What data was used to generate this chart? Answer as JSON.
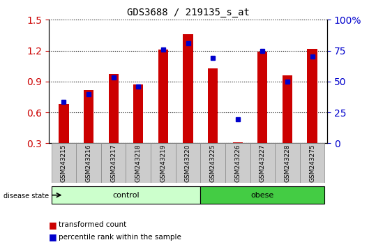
{
  "title": "GDS3688 / 219135_s_at",
  "samples": [
    "GSM243215",
    "GSM243216",
    "GSM243217",
    "GSM243218",
    "GSM243219",
    "GSM243220",
    "GSM243225",
    "GSM243226",
    "GSM243227",
    "GSM243228",
    "GSM243275"
  ],
  "red_values": [
    0.68,
    0.82,
    0.97,
    0.87,
    1.21,
    1.36,
    1.03,
    0.31,
    1.19,
    0.96,
    1.22
  ],
  "blue_values": [
    0.7,
    0.78,
    0.94,
    0.85,
    1.21,
    1.27,
    1.13,
    0.53,
    1.2,
    0.9,
    1.14
  ],
  "red_baseline": 0.3,
  "ylim_left": [
    0.3,
    1.5
  ],
  "ylim_right": [
    0.0,
    100.0
  ],
  "yticks_left": [
    0.3,
    0.6,
    0.9,
    1.2,
    1.5
  ],
  "yticks_right": [
    0,
    25,
    50,
    75,
    100
  ],
  "ytick_labels_right": [
    "0",
    "25",
    "50",
    "75",
    "100%"
  ],
  "control_samples": [
    "GSM243215",
    "GSM243216",
    "GSM243217",
    "GSM243218",
    "GSM243219",
    "GSM243220"
  ],
  "obese_samples": [
    "GSM243225",
    "GSM243226",
    "GSM243227",
    "GSM243228",
    "GSM243275"
  ],
  "control_label": "control",
  "obese_label": "obese",
  "disease_state_label": "disease state",
  "legend_red": "transformed count",
  "legend_blue": "percentile rank within the sample",
  "red_color": "#cc0000",
  "blue_color": "#0000cc",
  "control_color": "#ccffcc",
  "obese_color": "#44cc44",
  "bar_width": 0.4,
  "background_color": "#ffffff",
  "tick_label_color_left": "#cc0000",
  "tick_label_color_right": "#0000cc"
}
